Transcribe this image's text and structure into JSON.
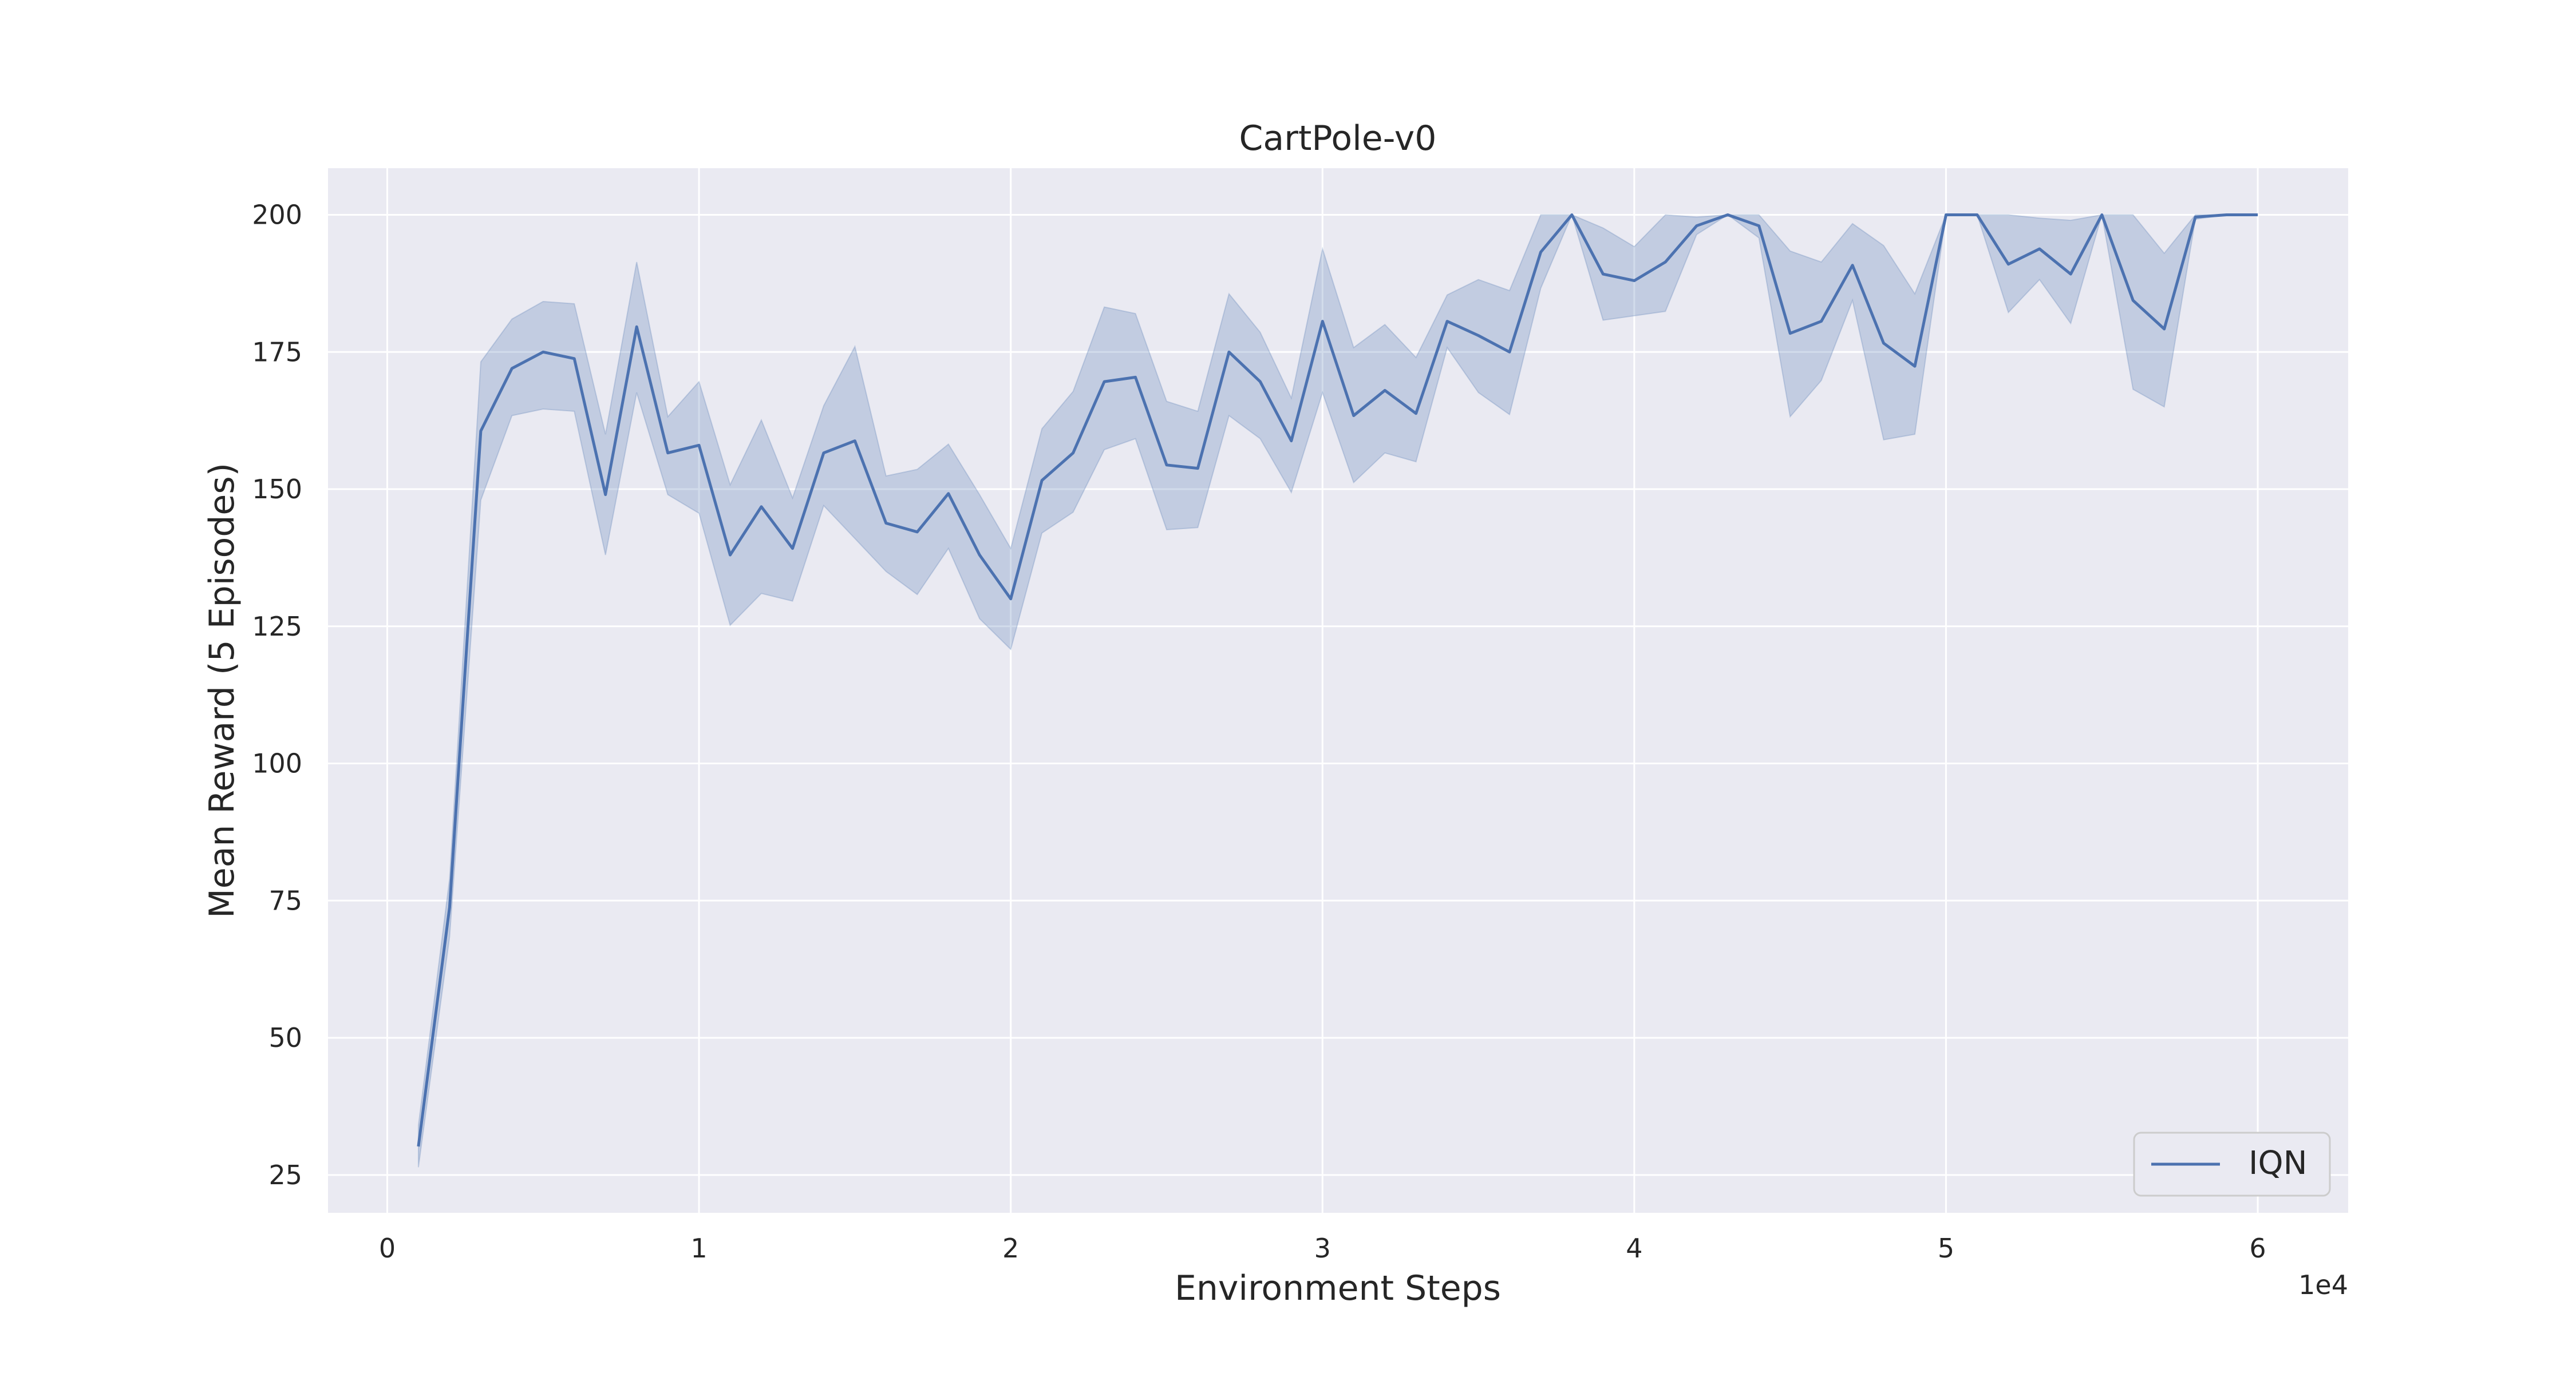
{
  "chart_data": {
    "type": "line",
    "title": "CartPole-v0",
    "xlabel": "Environment Steps",
    "ylabel": "Mean Reward (5 Episodes)",
    "x_offset_text": "1e4",
    "xlim": [
      -1900,
      62900
    ],
    "ylim": [
      18.1,
      208.5
    ],
    "xticks": [
      0,
      10000,
      20000,
      30000,
      40000,
      50000,
      60000
    ],
    "xtick_labels": [
      "0",
      "1",
      "2",
      "3",
      "4",
      "5",
      "6"
    ],
    "yticks": [
      25,
      50,
      75,
      100,
      125,
      150,
      175,
      200
    ],
    "ytick_labels": [
      "25",
      "50",
      "75",
      "100",
      "125",
      "150",
      "175",
      "200"
    ],
    "grid": true,
    "legend": {
      "position": "lower-right",
      "entries": [
        "IQN"
      ]
    },
    "colors": {
      "line": "#4c72b0",
      "band": "#4c72b0",
      "background": "#eaeaf2",
      "grid": "#ffffff"
    },
    "series": [
      {
        "name": "IQN",
        "x": [
          1000,
          2000,
          3000,
          4000,
          5000,
          6000,
          7000,
          8000,
          9000,
          10000,
          11000,
          12000,
          13000,
          14000,
          15000,
          16000,
          17000,
          18000,
          19000,
          20000,
          21000,
          22000,
          23000,
          24000,
          25000,
          26000,
          27000,
          28000,
          29000,
          30000,
          31000,
          32000,
          33000,
          34000,
          35000,
          36000,
          37000,
          38000,
          39000,
          40000,
          41000,
          42000,
          43000,
          44000,
          45000,
          46000,
          47000,
          48000,
          49000,
          50000,
          51000,
          52000,
          53000,
          54000,
          55000,
          56000,
          57000,
          58000,
          59000,
          60000
        ],
        "mean": [
          30.2,
          73.8,
          160.6,
          172.0,
          175.0,
          173.8,
          149.0,
          179.6,
          156.6,
          158.0,
          138.0,
          146.8,
          139.2,
          156.6,
          158.8,
          143.8,
          142.2,
          149.2,
          138.0,
          130.0,
          151.6,
          156.6,
          169.6,
          170.4,
          154.4,
          153.8,
          175.0,
          169.6,
          158.8,
          180.6,
          163.4,
          168.0,
          163.8,
          180.6,
          178.0,
          175.0,
          193.2,
          200.0,
          189.2,
          188.0,
          191.4,
          198.0,
          200.0,
          198.0,
          178.4,
          180.6,
          190.8,
          176.6,
          172.4,
          200.0,
          200.0,
          191.0,
          193.8,
          189.2,
          200.0,
          184.4,
          179.2,
          199.6,
          200.0,
          200.0
        ],
        "lower": [
          26.4,
          68.4,
          148.0,
          163.4,
          164.6,
          164.2,
          138.0,
          167.6,
          149.0,
          145.6,
          125.2,
          131.0,
          129.6,
          147.0,
          141.0,
          135.0,
          130.8,
          139.2,
          126.4,
          120.8,
          142.0,
          145.8,
          157.2,
          159.2,
          142.6,
          143.0,
          163.4,
          159.2,
          149.4,
          167.6,
          151.2,
          156.6,
          155.0,
          175.8,
          167.6,
          163.6,
          186.6,
          200.0,
          180.8,
          181.6,
          182.4,
          196.4,
          200.0,
          195.8,
          163.2,
          169.8,
          184.4,
          159.0,
          160.0,
          200.0,
          200.0,
          182.2,
          188.2,
          180.2,
          200.0,
          168.2,
          165.0,
          199.2,
          200.0,
          200.0
        ],
        "upper": [
          34.0,
          79.0,
          173.2,
          181.0,
          184.2,
          183.8,
          160.0,
          191.4,
          163.2,
          169.6,
          150.8,
          162.6,
          148.4,
          165.2,
          176.0,
          152.4,
          153.6,
          158.2,
          149.0,
          139.2,
          161.0,
          167.8,
          183.2,
          182.0,
          166.0,
          164.2,
          185.6,
          178.6,
          166.6,
          193.8,
          175.8,
          180.0,
          174.0,
          185.4,
          188.2,
          186.2,
          200.0,
          200.0,
          197.6,
          194.2,
          200.0,
          199.6,
          200.0,
          200.0,
          193.4,
          191.4,
          198.4,
          194.4,
          185.6,
          200.0,
          200.0,
          200.0,
          199.4,
          199.0,
          200.0,
          200.0,
          193.0,
          200.0,
          200.0,
          200.0
        ]
      }
    ]
  }
}
